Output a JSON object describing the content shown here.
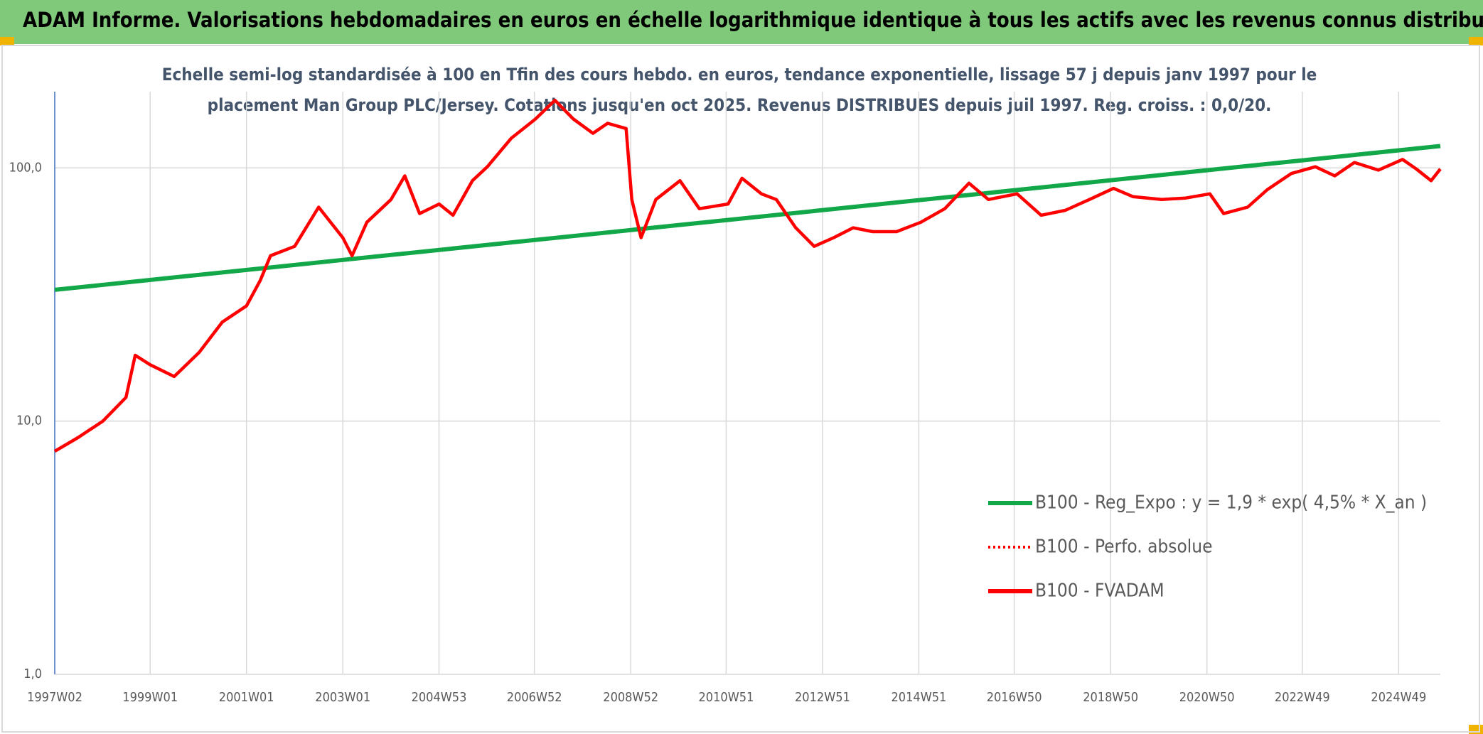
{
  "chart_data": {
    "type": "line",
    "title": "ADAM Informe. Valorisations hebdomadaires en euros en échelle logarithmique identique à tous les actifs avec les revenus connus distribués",
    "subtitle": [
      "Echelle semi-log standardisée à 100 en Tfin des cours hebdo. en euros, tendance exponentielle, lissage 57 j depuis janv 1997 pour le",
      "placement Man Group PLC/Jersey. Cotations jusqu'en oct 2025. Revenus DISTRIBUES depuis juil 1997. Reg. croiss. : 0,0/20."
    ],
    "log_scale": true,
    "grid": true,
    "legend": "lower right",
    "ylim": [
      1,
      200
    ],
    "yticks": [
      {
        "value": 1,
        "label": "1,0"
      },
      {
        "value": 10,
        "label": "10,0"
      },
      {
        "value": 100,
        "label": "100,0"
      }
    ],
    "xlim": [
      "1997W02",
      "2025W42"
    ],
    "xticks": [
      "1997W02",
      "1999W01",
      "2001W01",
      "2003W01",
      "2004W53",
      "2006W52",
      "2008W52",
      "2010W51",
      "2012W51",
      "2014W51",
      "2016W50",
      "2018W50",
      "2020W50",
      "2022W49",
      "2024W49"
    ],
    "series": [
      {
        "name": "B100 - Reg_Expo : y = 1,9 * exp( 4,5% *  X_an )",
        "color": "#12a84a",
        "style": "solid",
        "x": [
          "1997W02",
          "2025W42"
        ],
        "values": [
          33,
          122
        ]
      },
      {
        "name": "B100 - Perfo. absolue",
        "color": "#ff0000",
        "style": "dotted",
        "x": [],
        "values": []
      },
      {
        "name": "B100 - FVADAM",
        "color": "#ff0000",
        "style": "solid",
        "x": [
          "1997W02",
          "1997W27",
          "1998W02",
          "1998W27",
          "1998W37",
          "1999W01",
          "1999W27",
          "2000W02",
          "2000W27",
          "2001W01",
          "2001W16",
          "2001W27",
          "2002W01",
          "2002W27",
          "2003W01",
          "2003W11",
          "2003W27",
          "2004W01",
          "2004W16",
          "2004W32",
          "2005W01",
          "2005W16",
          "2005W37",
          "2006W01",
          "2006W27",
          "2007W01",
          "2007W22",
          "2007W42",
          "2008W11",
          "2008W27",
          "2008W47",
          "2009W01",
          "2009W11",
          "2009W27",
          "2010W01",
          "2010W22",
          "2011W01",
          "2011W16",
          "2011W37",
          "2012W01",
          "2012W22",
          "2012W42",
          "2013W11",
          "2013W32",
          "2014W01",
          "2014W27",
          "2015W01",
          "2015W27",
          "2016W01",
          "2016W22",
          "2017W01",
          "2017W27",
          "2018W01",
          "2018W27",
          "2019W01",
          "2019W22",
          "2020W01",
          "2020W27",
          "2021W01",
          "2021W16",
          "2021W42",
          "2022W11",
          "2022W37",
          "2023W11",
          "2023W32",
          "2024W01",
          "2024W27",
          "2025W01",
          "2025W16",
          "2025W32",
          "2025W42"
        ],
        "values": [
          7.6,
          8.6,
          10,
          12.4,
          18.2,
          16.7,
          15,
          18.7,
          24.6,
          28.5,
          36,
          45,
          49,
          70,
          53,
          45,
          61,
          75,
          93,
          66,
          72,
          65,
          89,
          101,
          131,
          156,
          185,
          156,
          137,
          150,
          143,
          75,
          53,
          75,
          89,
          69,
          72,
          91,
          79,
          75,
          58,
          49,
          53,
          58,
          56,
          56,
          61,
          69,
          87,
          75,
          79,
          65,
          68,
          75,
          83,
          77,
          75,
          76,
          79,
          66,
          70,
          82,
          95,
          101,
          93,
          105,
          98,
          108,
          99,
          89,
          99
        ]
      }
    ]
  }
}
